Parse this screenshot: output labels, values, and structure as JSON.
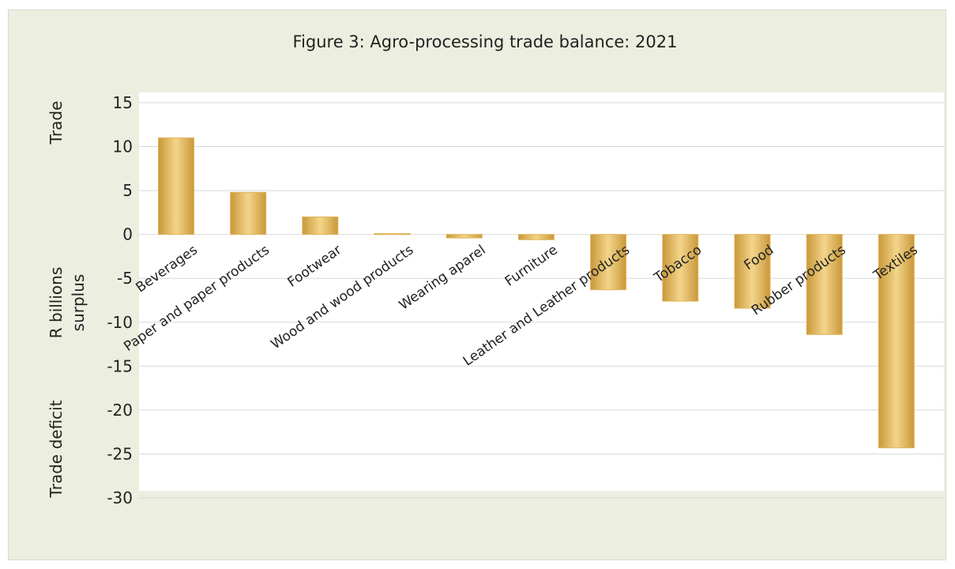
{
  "chart_data": {
    "type": "bar",
    "title": "Figure 3: Agro-processing trade balance: 2021",
    "ylabel_parts": [
      "Trade",
      "R billions",
      "surplus",
      "Trade deficit"
    ],
    "categories": [
      "Beverages",
      "Paper and paper products",
      "Footwear",
      "Wood and wood products",
      "Wearing aparel",
      "Furniture",
      "Leather and Leather products",
      "Tobacco",
      "Food",
      "Rubber products",
      "Textiles"
    ],
    "values": [
      11.0,
      4.8,
      2.0,
      0.1,
      -0.4,
      -0.6,
      -6.3,
      -7.6,
      -8.4,
      -11.4,
      -24.3
    ],
    "ylim": [
      -30,
      15
    ],
    "yticks": [
      15,
      10,
      5,
      0,
      -5,
      -10,
      -15,
      -20,
      -25,
      -30
    ],
    "grid": true,
    "legend": "none",
    "colors": {
      "bar_light": "#f3d58a",
      "bar_mid": "#e3b45a",
      "bar_dark": "#c9983a",
      "plot_background": "#ffffff",
      "frame_background": "#ecefe0",
      "gridline": "#d9d9d9"
    }
  }
}
